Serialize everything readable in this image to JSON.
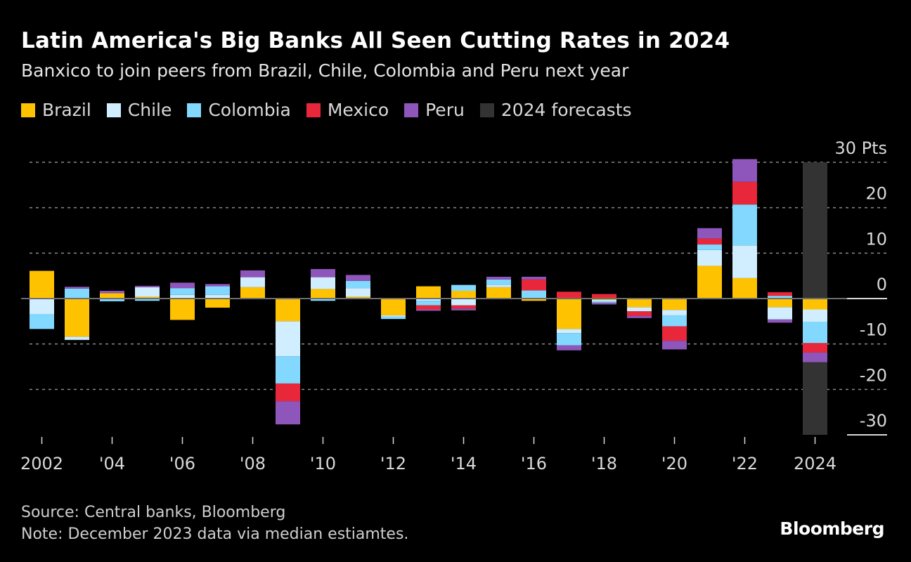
{
  "header": {
    "title": "Latin America's Big Banks All Seen Cutting Rates in 2024",
    "subtitle": "Banxico to join peers from Brazil, Chile, Colombia and Peru next year"
  },
  "legend": [
    {
      "label": "Brazil",
      "color": "#FFC200"
    },
    {
      "label": "Chile",
      "color": "#D0EEFF"
    },
    {
      "label": "Colombia",
      "color": "#82D8FF"
    },
    {
      "label": "Mexico",
      "color": "#E8283A"
    },
    {
      "label": "Peru",
      "color": "#8E55BA"
    },
    {
      "label": "2024 forecasts",
      "color": "#333333"
    }
  ],
  "footer": {
    "source": "Source: Central banks, Bloomberg",
    "note": "Note: December 2023 data via median estiamtes.",
    "logo": "Bloomberg"
  },
  "chart_data": {
    "type": "bar",
    "stacked": true,
    "title": "Latin America's Big Banks All Seen Cutting Rates in 2024",
    "subtitle": "Banxico to join peers from Brazil, Chile, Colombia and Peru next year",
    "xlabel": "",
    "ylabel": "Pts",
    "ylim": [
      -30,
      30
    ],
    "yticks": [
      30,
      20,
      10,
      0,
      -10,
      -20,
      -30
    ],
    "ytick_labels": [
      "30 Pts",
      "20",
      "10",
      "0",
      "-10",
      "-20",
      "-30"
    ],
    "y_axis_position": "right",
    "grid": true,
    "legend_position": "top-left",
    "categories": [
      "2002",
      "2003",
      "2004",
      "2005",
      "2006",
      "2007",
      "2008",
      "2009",
      "2010",
      "2011",
      "2012",
      "2013",
      "2014",
      "2015",
      "2016",
      "2017",
      "2018",
      "2019",
      "2020",
      "2021",
      "2022",
      "2023",
      "2024"
    ],
    "xtick_labels": [
      {
        "index": 0,
        "label": "2002"
      },
      {
        "index": 2,
        "label": "'04"
      },
      {
        "index": 4,
        "label": "'06"
      },
      {
        "index": 6,
        "label": "'08"
      },
      {
        "index": 8,
        "label": "'10"
      },
      {
        "index": 10,
        "label": "'12"
      },
      {
        "index": 12,
        "label": "'14"
      },
      {
        "index": 14,
        "label": "'16"
      },
      {
        "index": 16,
        "label": "'18"
      },
      {
        "index": 18,
        "label": "'20"
      },
      {
        "index": 20,
        "label": "'22"
      },
      {
        "index": 22,
        "label": "2024"
      }
    ],
    "series": [
      {
        "name": "Brazil",
        "color": "#FFC200",
        "values": [
          6.1,
          -8.4,
          1.2,
          0.4,
          -4.7,
          -2.0,
          2.5,
          -5.0,
          2.1,
          0.4,
          -3.7,
          2.7,
          1.7,
          2.5,
          -0.5,
          -6.7,
          -0.3,
          -1.9,
          -2.5,
          7.2,
          4.5,
          -1.9,
          -2.4
        ]
      },
      {
        "name": "Chile",
        "color": "#D0EEFF",
        "values": [
          -3.4,
          -0.7,
          0.0,
          2.1,
          0.8,
          0.8,
          2.2,
          -7.7,
          2.6,
          1.9,
          -0.3,
          -0.5,
          -1.5,
          0.5,
          0.0,
          -0.9,
          -0.3,
          -0.9,
          -1.2,
          3.5,
          7.2,
          -2.7,
          -2.7
        ]
      },
      {
        "name": "Colombia",
        "color": "#82D8FF",
        "values": [
          -3.3,
          2.2,
          -0.6,
          -0.5,
          1.5,
          1.9,
          0.0,
          -6.0,
          -0.5,
          1.6,
          -0.5,
          -1.0,
          1.3,
          1.2,
          1.8,
          -2.7,
          -0.3,
          0.0,
          -2.4,
          1.2,
          9.0,
          0.6,
          -4.7
        ]
      },
      {
        "name": "Mexico",
        "color": "#E8283A",
        "values": [
          0.0,
          0.0,
          0.0,
          0.0,
          0.0,
          0.0,
          0.0,
          -3.9,
          0.0,
          0.0,
          0.0,
          -0.9,
          -0.7,
          0.0,
          2.4,
          1.5,
          1.0,
          -1.0,
          -3.2,
          1.3,
          5.0,
          0.8,
          -2.1
        ]
      },
      {
        "name": "Peru",
        "color": "#8E55BA",
        "values": [
          0.0,
          0.4,
          0.5,
          0.3,
          1.2,
          0.5,
          1.5,
          -5.1,
          1.8,
          1.3,
          0.0,
          -0.3,
          -0.4,
          0.6,
          0.6,
          -1.1,
          -0.4,
          -0.5,
          -1.9,
          2.3,
          5.0,
          -0.7,
          -2.1
        ]
      }
    ],
    "highlight": {
      "label": "2024 forecasts",
      "category": "2024",
      "range": [
        -30,
        30
      ],
      "color": "#333333"
    }
  }
}
